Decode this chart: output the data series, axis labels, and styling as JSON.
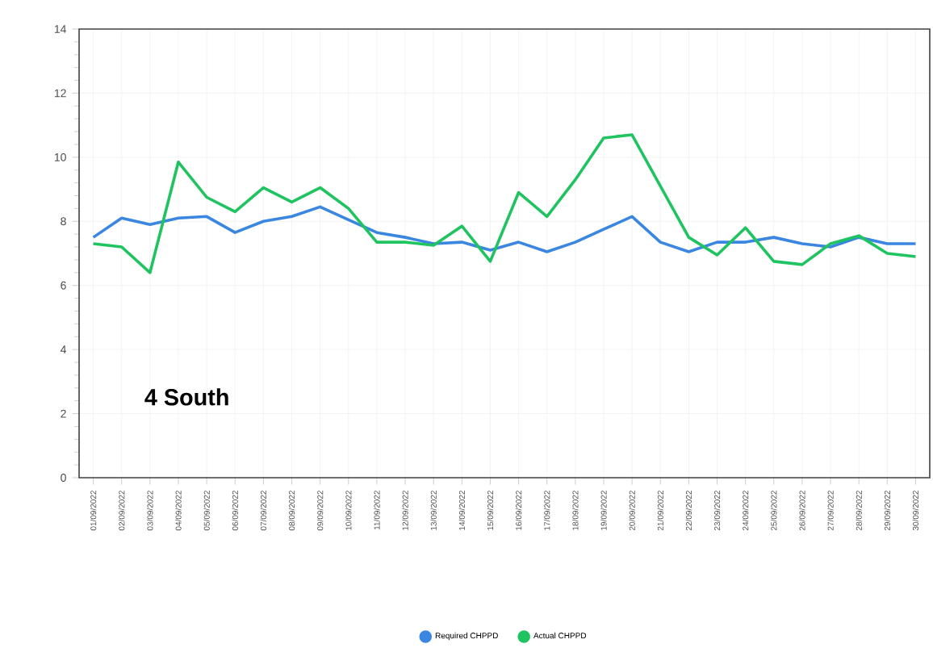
{
  "chart_data": {
    "type": "line",
    "categories": [
      "01/09/2022",
      "02/09/2022",
      "03/09/2022",
      "04/09/2022",
      "05/09/2022",
      "06/09/2022",
      "07/09/2022",
      "08/09/2022",
      "09/09/2022",
      "10/09/2022",
      "11/09/2022",
      "12/09/2022",
      "13/09/2022",
      "14/09/2022",
      "15/09/2022",
      "16/09/2022",
      "17/09/2022",
      "18/09/2022",
      "19/09/2022",
      "20/09/2022",
      "21/09/2022",
      "22/09/2022",
      "23/09/2022",
      "24/09/2022",
      "25/09/2022",
      "26/09/2022",
      "27/09/2022",
      "28/09/2022",
      "29/09/2022",
      "30/09/2022"
    ],
    "series": [
      {
        "name": "Required CHPPD",
        "color": "#3a86e0",
        "values": [
          7.5,
          8.1,
          7.9,
          8.1,
          8.15,
          7.65,
          8.0,
          8.15,
          8.45,
          8.05,
          7.65,
          7.5,
          7.3,
          7.35,
          7.1,
          7.35,
          7.05,
          7.35,
          7.75,
          8.15,
          7.35,
          7.05,
          7.35,
          7.35,
          7.5,
          7.3,
          7.2,
          7.5,
          7.3,
          7.3
        ]
      },
      {
        "name": "Actual CHPPD",
        "color": "#1fc460",
        "values": [
          7.3,
          7.2,
          6.4,
          9.85,
          8.75,
          8.3,
          9.05,
          8.6,
          9.05,
          8.4,
          7.35,
          7.35,
          7.25,
          7.85,
          6.75,
          8.9,
          8.15,
          9.3,
          10.6,
          10.7,
          9.1,
          7.5,
          6.95,
          7.8,
          6.75,
          6.65,
          7.3,
          7.55,
          7.0,
          6.9
        ]
      }
    ],
    "ylim": [
      0,
      14
    ],
    "yticks": [
      0,
      2,
      4,
      6,
      8,
      10,
      12,
      14
    ],
    "grid": true,
    "legend": "bottom",
    "marker": "none",
    "line_style": "solid",
    "annotations": [
      "4 South"
    ]
  }
}
